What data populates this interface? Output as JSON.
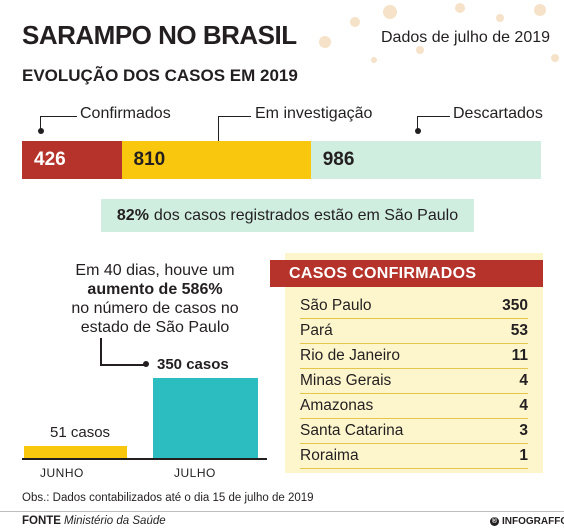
{
  "header": {
    "title": "SARAMPO NO BRASIL",
    "date": "Dados de julho de 2019",
    "subtitle": "EVOLUÇÃO DOS CASOS EM 2019"
  },
  "colors": {
    "confirmed": "#b5332b",
    "investigation": "#f9c80e",
    "discarded": "#cfeee0",
    "june_bar": "#f9c80e",
    "july_bar": "#2bbdbf",
    "dots": "#f5e2c8"
  },
  "highlight": {
    "percent": "82%",
    "text": "dos casos registrados estão em São Paulo"
  },
  "growth_note": {
    "line1": "Em 40 dias, houve um",
    "line2": "aumento de 586%",
    "line3": "no número de casos no",
    "line4": "estado de São Paulo"
  },
  "table": {
    "title": "CASOS CONFIRMADOS",
    "rows": [
      {
        "state": "São Paulo",
        "value": "350"
      },
      {
        "state": "Pará",
        "value": "53"
      },
      {
        "state": "Rio de Janeiro",
        "value": "11"
      },
      {
        "state": "Minas Gerais",
        "value": "4"
      },
      {
        "state": "Amazonas",
        "value": "4"
      },
      {
        "state": "Santa Catarina",
        "value": "3"
      },
      {
        "state": "Roraima",
        "value": "1"
      }
    ]
  },
  "chart_data": [
    {
      "type": "bar",
      "orientation": "horizontal-stacked",
      "title": "EVOLUÇÃO DOS CASOS EM 2019",
      "categories": [
        "Confirmados",
        "Em investigação",
        "Descartados"
      ],
      "values": [
        426,
        810,
        986
      ]
    },
    {
      "type": "bar",
      "categories": [
        "JUNHO",
        "JULHO"
      ],
      "values": [
        51,
        350
      ],
      "value_labels": [
        "51 casos",
        "350 casos"
      ]
    }
  ],
  "footer": {
    "obs": "Obs.: Dados contabilizados até o dia 15 de julho de 2019",
    "fonte_label": "FONTE",
    "fonte_source": "Ministério da Saúde",
    "brand": "INFOGRAFFO"
  }
}
